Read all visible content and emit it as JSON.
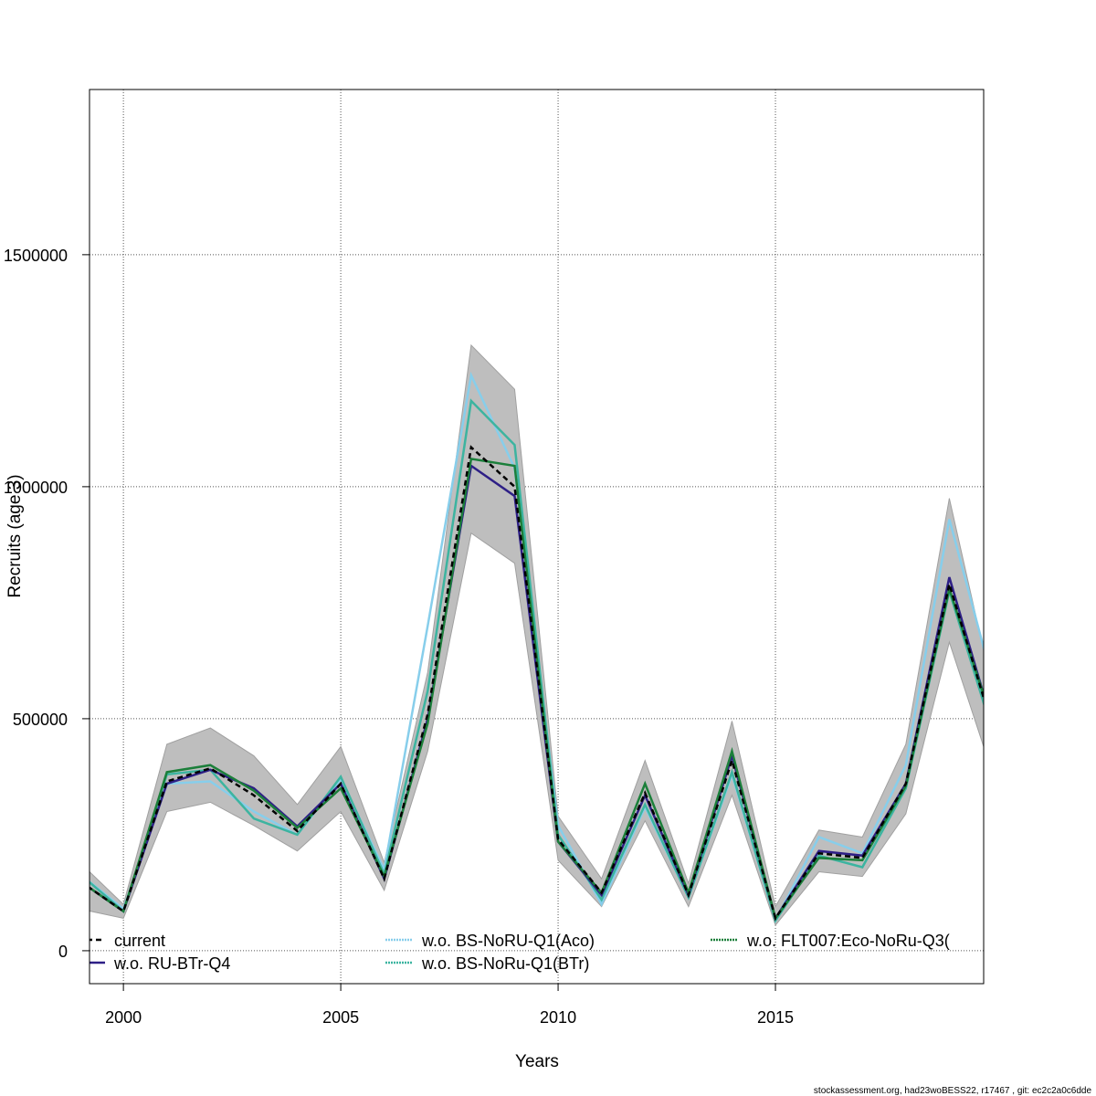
{
  "chart_data": {
    "type": "line",
    "title": "",
    "xlabel": "Years",
    "ylabel": "Recruits (age 3)",
    "xlim": [
      1999.22,
      2019.79
    ],
    "ylim": [
      -71000,
      1856000
    ],
    "grid": true,
    "xticks": [
      2000,
      2005,
      2010,
      2015
    ],
    "yticks": [
      0,
      500000,
      1000000,
      1500000
    ],
    "xtick_labels": [
      "2000",
      "2005",
      "2010",
      "2015"
    ],
    "ytick_labels": [
      "0",
      "500000",
      "1000000",
      "1500000"
    ],
    "legend_position": "bottom",
    "x": [
      1999,
      2000,
      2001,
      2002,
      2003,
      2004,
      2005,
      2006,
      2007,
      2008,
      2009,
      2010,
      2011,
      2012,
      2013,
      2014,
      2015,
      2016,
      2017,
      2018,
      2019,
      2020
    ],
    "confidence_band": {
      "name": "current 95% CI",
      "color": "#bebebe",
      "upper": [
        190000,
        100000,
        445000,
        480000,
        420000,
        315000,
        440000,
        190000,
        600000,
        1305000,
        1210000,
        290000,
        155000,
        410000,
        145000,
        495000,
        95000,
        260000,
        245000,
        445000,
        975000,
        560000
      ],
      "lower": [
        90000,
        70000,
        300000,
        320000,
        270000,
        215000,
        300000,
        130000,
        430000,
        900000,
        835000,
        195000,
        95000,
        280000,
        95000,
        335000,
        55000,
        170000,
        160000,
        295000,
        665000,
        380000
      ]
    },
    "series": [
      {
        "name": "current",
        "color": "#000000",
        "dashed": true,
        "values": [
          150000,
          85000,
          365000,
          393000,
          335000,
          258000,
          360000,
          155000,
          510000,
          1085000,
          1000000,
          240000,
          125000,
          340000,
          120000,
          410000,
          70000,
          210000,
          200000,
          360000,
          790000,
          480000
        ]
      },
      {
        "name": "w.o. RU-BTr-Q4",
        "color": "#2e1f86",
        "dashed": false,
        "values": [
          150000,
          85000,
          360000,
          390000,
          350000,
          268000,
          360000,
          155000,
          500000,
          1045000,
          980000,
          235000,
          120000,
          335000,
          120000,
          420000,
          70000,
          215000,
          205000,
          360000,
          805000,
          485000
        ]
      },
      {
        "name": "w.o. BS-NoRU-Q1(Aco)",
        "color": "#87ceeb",
        "dashed": false,
        "values": [
          165000,
          90000,
          360000,
          365000,
          300000,
          250000,
          370000,
          175000,
          700000,
          1240000,
          1040000,
          270000,
          100000,
          310000,
          115000,
          380000,
          65000,
          245000,
          210000,
          400000,
          930000,
          580000
        ]
      },
      {
        "name": "w.o. BS-NoRu-Q1(BTr)",
        "color": "#3cb4a0",
        "dashed": false,
        "values": [
          165000,
          85000,
          380000,
          390000,
          285000,
          250000,
          375000,
          165000,
          560000,
          1185000,
          1090000,
          250000,
          110000,
          315000,
          115000,
          385000,
          65000,
          205000,
          180000,
          350000,
          775000,
          470000
        ]
      },
      {
        "name": "w.o. FLT007:Eco-NoRu-Q3(",
        "color": "#1b7f3a",
        "dashed": false,
        "values": [
          150000,
          85000,
          385000,
          400000,
          345000,
          265000,
          350000,
          160000,
          490000,
          1060000,
          1045000,
          235000,
          125000,
          360000,
          125000,
          430000,
          70000,
          200000,
          195000,
          355000,
          780000,
          490000
        ]
      }
    ]
  },
  "footer": "stockassessment.org, had23woBESS22, r17467 , git: ec2c2a0c6dde"
}
